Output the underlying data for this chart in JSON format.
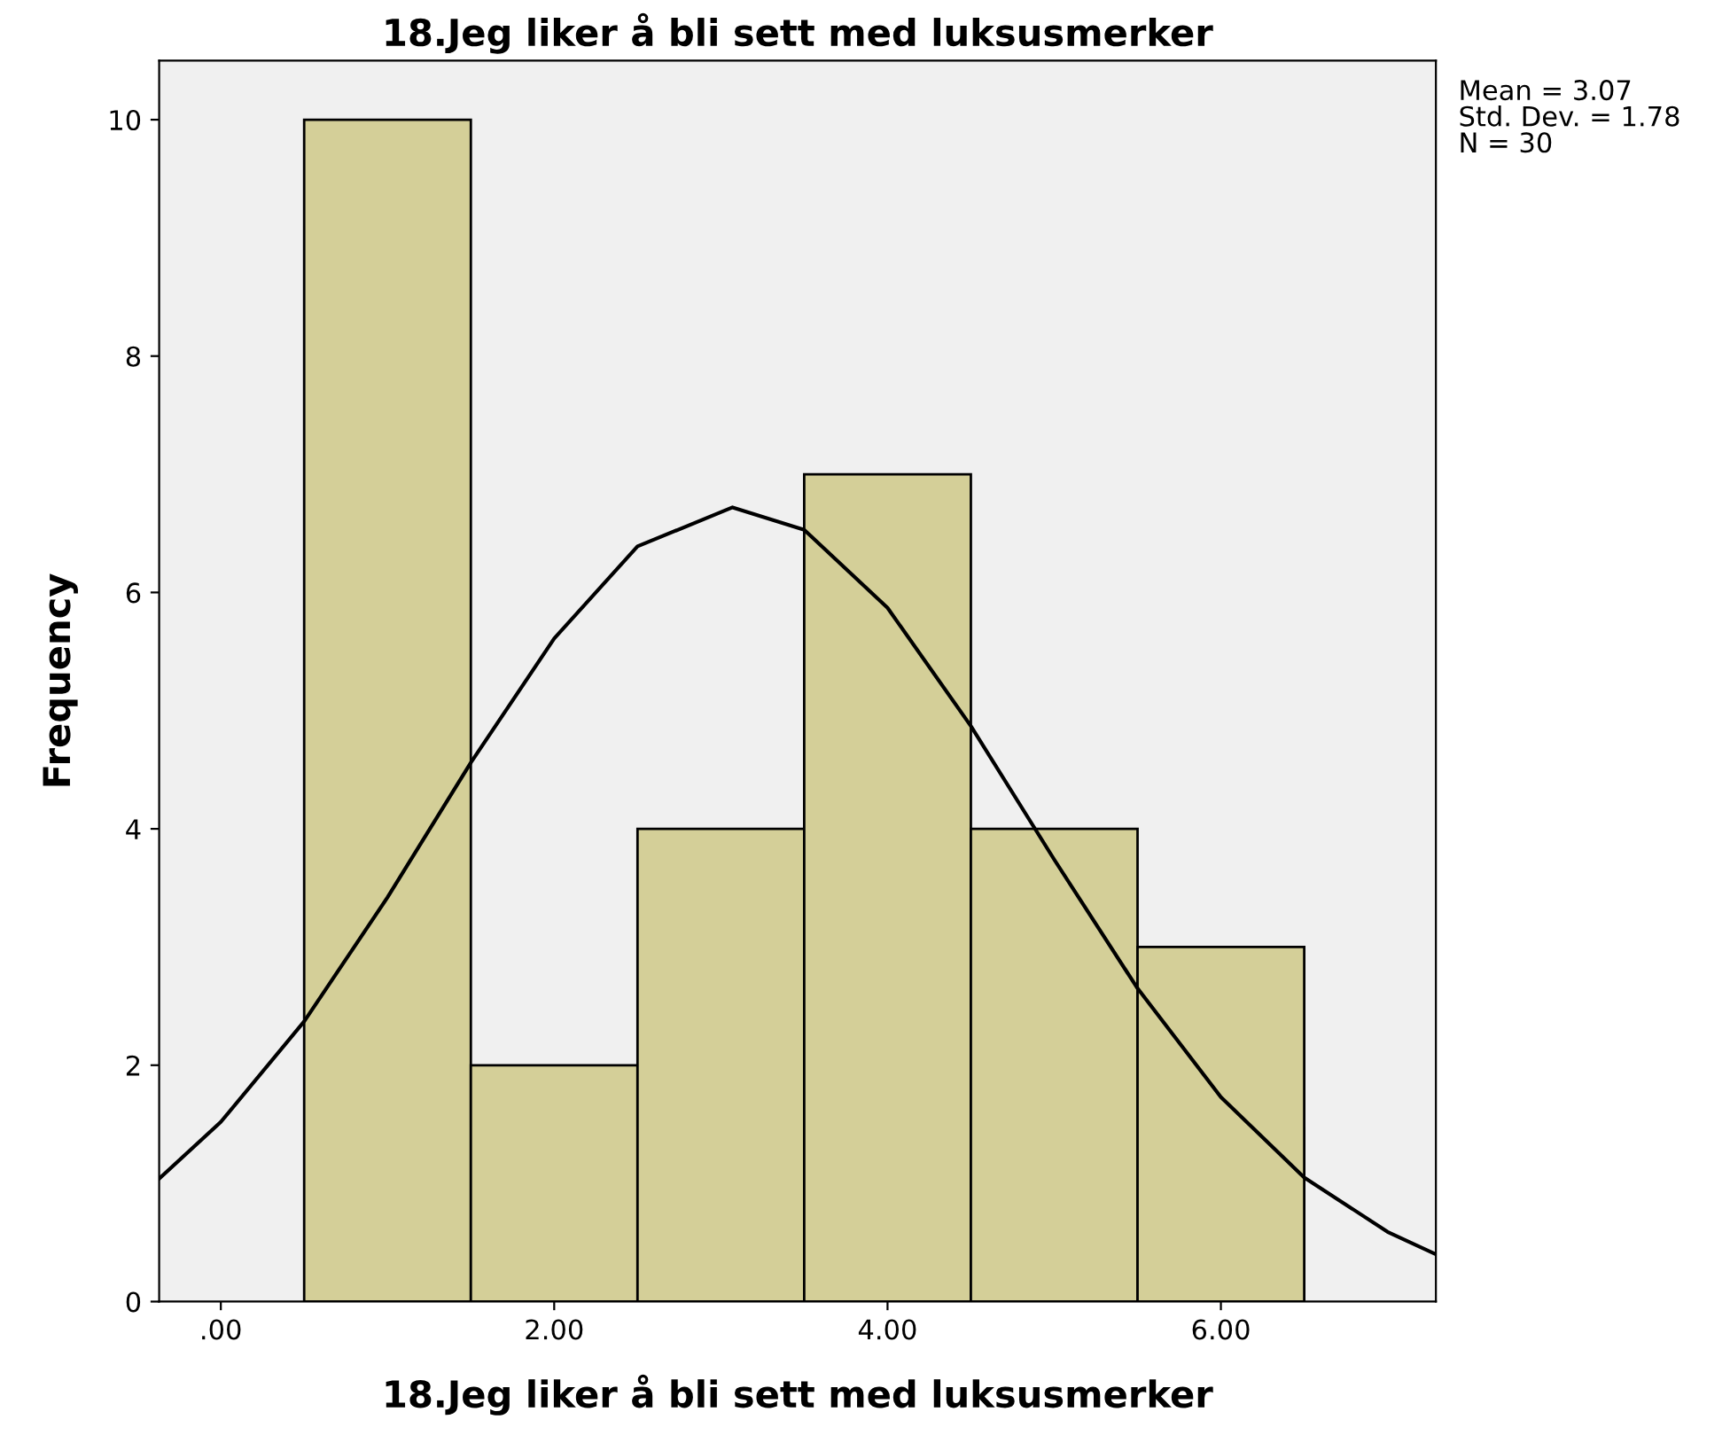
{
  "chart_data": {
    "type": "histogram",
    "title": "18.Jeg liker å bli sett med luksusmerker",
    "xlabel": "18.Jeg liker å bli sett med luksusmerker",
    "ylabel": "Frequency",
    "color": "#d4cf98",
    "bins": [
      0.5,
      1.5,
      2.5,
      3.5,
      4.5,
      5.5,
      6.5
    ],
    "values": [
      10,
      2,
      4,
      7,
      4,
      3
    ],
    "series": [
      {
        "type": "line",
        "color": "#000000",
        "x": [
          -0.37,
          0,
          0.5,
          1.0,
          1.5,
          2.0,
          2.5,
          3.07,
          3.5,
          4.0,
          4.5,
          5.0,
          5.5,
          6.0,
          6.5,
          7.0,
          7.29
        ],
        "values": [
          1.04,
          1.52,
          2.37,
          3.42,
          4.56,
          5.61,
          6.39,
          6.72,
          6.53,
          5.87,
          4.87,
          3.74,
          2.65,
          1.73,
          1.05,
          0.59,
          0.4
        ]
      }
    ],
    "xlim": [
      -0.37,
      7.29
    ],
    "ylim": [
      0,
      10.5
    ],
    "xticks": [
      {
        "value": 0,
        "label": ".00"
      },
      {
        "value": 2,
        "label": "2.00"
      },
      {
        "value": 4,
        "label": "4.00"
      },
      {
        "value": 6,
        "label": "6.00"
      }
    ],
    "yticks": [
      0,
      2,
      4,
      6,
      8,
      10
    ],
    "grid": false,
    "legend": false,
    "marker": "none",
    "annotations": [
      "Mean = 3.07",
      "Std. Dev. = 1.78",
      "N = 30"
    ]
  }
}
